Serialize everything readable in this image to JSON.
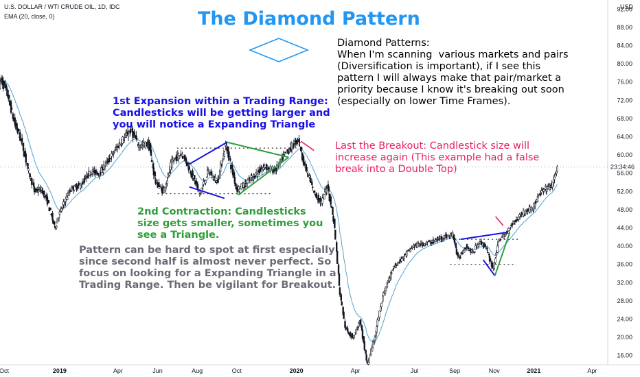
{
  "header": {
    "symbol": "U.S. DOLLAR / WTI CRUDE OIL, 1D, IDC",
    "indicator": "EMA (20, close, 0)",
    "currency": "USD",
    "price_tag": "23:34:46"
  },
  "colors": {
    "candle_up": "#26a69a",
    "candle_down": "#ef5350",
    "candle_body": "#131722",
    "ema": "#5fa8d3",
    "title": "#2196f3",
    "expansion": "#1a10e6",
    "contraction": "#2e9e3a",
    "breakout": "#e91e63",
    "guide": "#6b6b78"
  },
  "annotations": {
    "title": "The Diamond Pattern",
    "diversification": "Diamond Patterns:\nWhen I'm scanning  various markets and pairs\n(Diversification is important), if I see this\npattern I will always make that pair/market a\npriority because I know it's breaking out soon\n(especially on lower Time Frames).",
    "expansion": "1st Expansion within a Trading Range:\nCandlesticks will be getting larger and\nyou will notice a Expanding Triangle",
    "breakout": "Last the Breakout: Candlestick size will\nincrease again (This example had a false\nbreak into a Double Top)",
    "contraction": "2nd Contraction: Candlesticks\nsize gets smaller, sometimes you\nsee a Triangle.",
    "pattern": "Pattern can be hard to spot at first especially\nsince second half is almost never perfect. So\nfocus on looking for a Expanding Triangle in a\nTrading Range. Then be vigilant for Breakout."
  },
  "chart_data": {
    "type": "candlestick",
    "title": "",
    "y_axis": {
      "range": [
        14,
        94
      ],
      "ticks": [
        "92.00",
        "88.00",
        "84.00",
        "80.00",
        "76.00",
        "72.00",
        "68.00",
        "64.00",
        "60.00",
        "56.00",
        "52.00",
        "48.00",
        "44.00",
        "40.00",
        "36.00",
        "32.00",
        "28.00",
        "24.00",
        "20.00",
        "16.00"
      ],
      "tick_values": [
        92,
        88,
        84,
        80,
        76,
        72,
        68,
        64,
        60,
        56,
        52,
        48,
        44,
        40,
        36,
        32,
        28,
        24,
        20,
        16
      ],
      "position": "right"
    },
    "x_axis": {
      "range": [
        "2018-10-01",
        "2021-04-25"
      ],
      "ticks": [
        {
          "label": "Oct",
          "date": "2018-10-01"
        },
        {
          "label": "2019",
          "date": "2019-01-01"
        },
        {
          "label": "Apr",
          "date": "2019-04-01"
        },
        {
          "label": "Jun",
          "date": "2019-06-01"
        },
        {
          "label": "Aug",
          "date": "2019-08-01"
        },
        {
          "label": "Oct",
          "date": "2019-10-01"
        },
        {
          "label": "2020",
          "date": "2020-01-01"
        },
        {
          "label": "Apr",
          "date": "2020-04-01"
        },
        {
          "label": "Jul",
          "date": "2020-07-01"
        },
        {
          "label": "Sep",
          "date": "2020-09-01"
        },
        {
          "label": "Nov",
          "date": "2020-11-01"
        },
        {
          "label": "2021",
          "date": "2021-01-01"
        },
        {
          "label": "Apr",
          "date": "2021-04-01"
        }
      ]
    },
    "price_path": [
      [
        "2018-10-01",
        75.5
      ],
      [
        "2018-10-05",
        76.5
      ],
      [
        "2018-10-15",
        73.0
      ],
      [
        "2018-10-25",
        67.0
      ],
      [
        "2018-11-05",
        63.0
      ],
      [
        "2018-11-15",
        57.0
      ],
      [
        "2018-11-25",
        52.0
      ],
      [
        "2018-12-05",
        52.5
      ],
      [
        "2018-12-15",
        50.0
      ],
      [
        "2018-12-26",
        44.0
      ],
      [
        "2019-01-05",
        48.0
      ],
      [
        "2019-01-20",
        52.5
      ],
      [
        "2019-02-05",
        53.5
      ],
      [
        "2019-02-20",
        56.5
      ],
      [
        "2019-03-05",
        56.0
      ],
      [
        "2019-03-20",
        59.0
      ],
      [
        "2019-04-05",
        62.5
      ],
      [
        "2019-04-23",
        65.5
      ],
      [
        "2019-05-05",
        62.0
      ],
      [
        "2019-05-20",
        62.5
      ],
      [
        "2019-05-31",
        54.0
      ],
      [
        "2019-06-12",
        52.0
      ],
      [
        "2019-06-25",
        58.5
      ],
      [
        "2019-07-10",
        60.5
      ],
      [
        "2019-07-25",
        56.0
      ],
      [
        "2019-08-07",
        51.5
      ],
      [
        "2019-08-20",
        56.5
      ],
      [
        "2019-09-03",
        54.0
      ],
      [
        "2019-09-16",
        62.5
      ],
      [
        "2019-09-25",
        57.0
      ],
      [
        "2019-10-03",
        52.5
      ],
      [
        "2019-10-15",
        53.5
      ],
      [
        "2019-10-30",
        55.5
      ],
      [
        "2019-11-15",
        57.5
      ],
      [
        "2019-12-01",
        56.5
      ],
      [
        "2019-12-15",
        60.0
      ],
      [
        "2020-01-06",
        63.5
      ],
      [
        "2020-01-15",
        58.0
      ],
      [
        "2020-01-31",
        51.5
      ],
      [
        "2020-02-10",
        49.5
      ],
      [
        "2020-02-20",
        53.5
      ],
      [
        "2020-03-01",
        45.0
      ],
      [
        "2020-03-09",
        31.0
      ],
      [
        "2020-03-18",
        22.0
      ],
      [
        "2020-03-30",
        20.0
      ],
      [
        "2020-04-10",
        23.5
      ],
      [
        "2020-04-21",
        14.0
      ],
      [
        "2020-05-01",
        19.0
      ],
      [
        "2020-05-15",
        29.0
      ],
      [
        "2020-06-01",
        35.5
      ],
      [
        "2020-06-15",
        37.5
      ],
      [
        "2020-07-01",
        40.0
      ],
      [
        "2020-07-15",
        40.5
      ],
      [
        "2020-08-01",
        41.0
      ],
      [
        "2020-08-15",
        42.0
      ],
      [
        "2020-09-01",
        42.5
      ],
      [
        "2020-09-08",
        37.0
      ],
      [
        "2020-09-20",
        40.0
      ],
      [
        "2020-10-01",
        38.5
      ],
      [
        "2020-10-10",
        41.0
      ],
      [
        "2020-10-20",
        40.0
      ],
      [
        "2020-11-01",
        35.0
      ],
      [
        "2020-11-10",
        41.5
      ],
      [
        "2020-11-20",
        42.5
      ],
      [
        "2020-12-01",
        45.0
      ],
      [
        "2020-12-15",
        47.0
      ],
      [
        "2021-01-01",
        48.5
      ],
      [
        "2021-01-15",
        52.0
      ],
      [
        "2021-02-01",
        53.5
      ],
      [
        "2021-02-08",
        57.5
      ]
    ]
  }
}
